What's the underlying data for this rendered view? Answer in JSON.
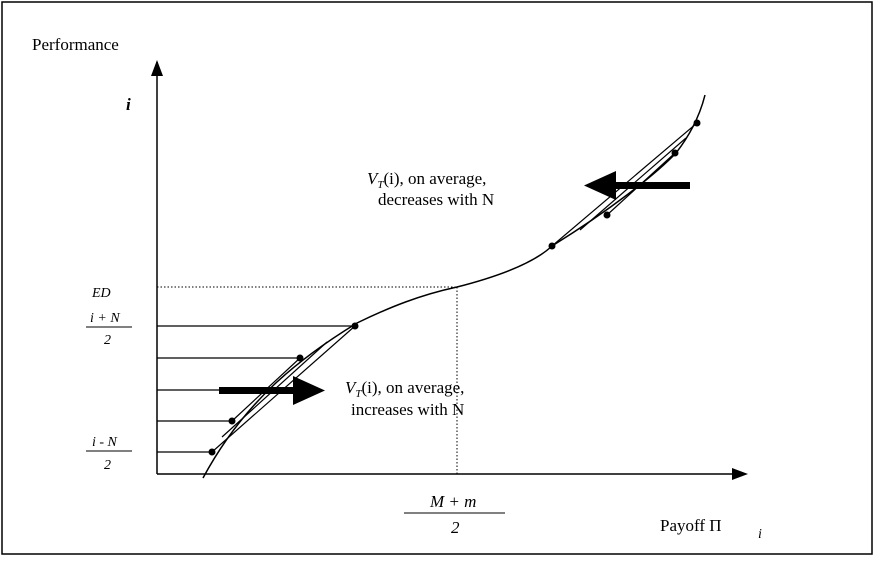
{
  "diagram": {
    "y_axis_title": "Performance",
    "y_axis_var": "i",
    "x_axis_title": "Payoff Π",
    "x_axis_sub": "i",
    "ed_label": "ED",
    "upper_frac": {
      "num": "i + N",
      "den": "2"
    },
    "lower_frac": {
      "num": "i - N",
      "den": "2"
    },
    "x_frac": {
      "num": "M + m",
      "den": "2"
    },
    "upper_note": {
      "v": "V",
      "v_sub": "T",
      "line1_rest": "(i), on average,",
      "line2": "decreases with N"
    },
    "lower_note": {
      "v": "V",
      "v_sub": "T",
      "line1_rest": "(i), on average,",
      "line2": "increases with N"
    }
  }
}
